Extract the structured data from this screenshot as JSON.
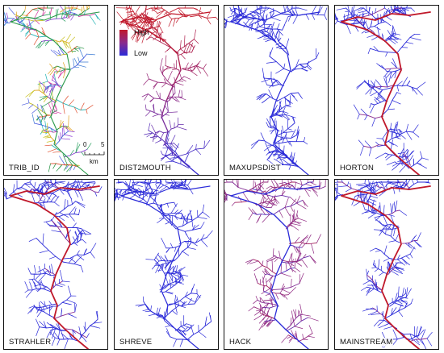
{
  "panels": [
    {
      "label": "TRIB_ID",
      "scheme": "multi"
    },
    {
      "label": "DIST2MOUTH",
      "scheme": "dist"
    },
    {
      "label": "MAXUPSDIST",
      "scheme": "blue"
    },
    {
      "label": "HORTON",
      "scheme": "main"
    },
    {
      "label": "STRAHLER",
      "scheme": "main"
    },
    {
      "label": "SHREVE",
      "scheme": "blue"
    },
    {
      "label": "HACK",
      "scheme": "hack"
    },
    {
      "label": "MAINSTREAM",
      "scheme": "main"
    }
  ],
  "legend": {
    "high": "High",
    "low": "Low"
  },
  "scale_bar": {
    "zero": "0",
    "max": "5",
    "unit": "km"
  },
  "colors": {
    "high": "#c0182a",
    "low": "#2a2ad8",
    "mid": "#8a2a8c"
  }
}
